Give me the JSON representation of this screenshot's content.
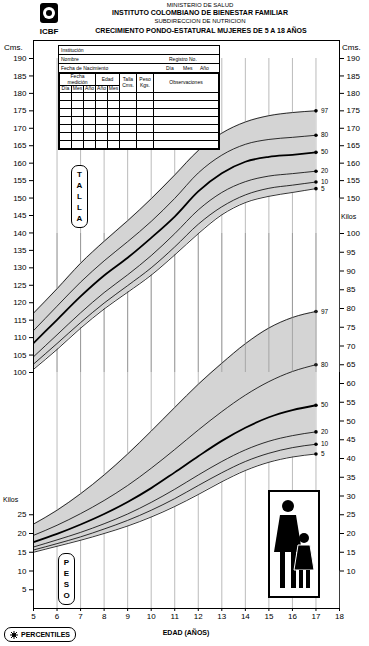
{
  "header": {
    "ministry": "MINISTERIO DE SALUD",
    "institute": "INSTITUTO COLOMBIANO DE BIENESTAR FAMILIAR",
    "division": "SUBDIRECCION DE NUTRICION",
    "title": "CRECIMIENTO PONDO-ESTATURAL MUJERES DE 5 A 18 AÑOS",
    "logo": "ICBF"
  },
  "form": {
    "institution": "Institución",
    "name": "Nombre",
    "register": "Registro No.",
    "birth_date": "Fecha de Nacimiento",
    "birth_parts": [
      "Día",
      "Mes",
      "Año"
    ],
    "columns": [
      {
        "label": "Fecha medición",
        "sub": [
          "Día",
          "Mes",
          "Año"
        ]
      },
      {
        "label": "Edad",
        "sub": [
          "Año",
          "Mes"
        ]
      },
      {
        "label": "Talla Cms."
      },
      {
        "label": "Peso Kgs."
      },
      {
        "label": "Observaciones"
      }
    ]
  },
  "footer": {
    "percentiles": "PERCENTILES"
  },
  "chart_data": [
    {
      "type": "line",
      "title": "TALLA",
      "x": [
        5,
        6,
        7,
        8,
        9,
        10,
        11,
        12,
        13,
        14,
        15,
        16,
        17
      ],
      "xlim": [
        5,
        18
      ],
      "xticks": [
        5,
        6,
        7,
        8,
        9,
        10,
        11,
        12,
        13,
        14,
        15,
        16,
        17,
        18
      ],
      "ylim": [
        100,
        190
      ],
      "yticks": [
        100,
        105,
        110,
        115,
        120,
        125,
        130,
        135,
        140,
        145,
        150,
        155,
        160,
        165,
        170,
        175,
        180,
        185,
        190
      ],
      "y2lim": [
        150,
        190
      ],
      "y2ticks": [
        150,
        155,
        160,
        165,
        170,
        175,
        180,
        185,
        190
      ],
      "ylabel": "Cms.",
      "y2label": "Cms.",
      "grid": true,
      "color": "#000000",
      "marker": "dot",
      "series": [
        {
          "name": "5",
          "line_style": "solid",
          "values": [
            100.9,
            106.6,
            112.7,
            118.2,
            123.0,
            127.9,
            133.7,
            139.8,
            145.2,
            148.7,
            150.5,
            151.6,
            152.7
          ]
        },
        {
          "name": "10",
          "line_style": "solid",
          "values": [
            102.4,
            108.3,
            114.3,
            119.9,
            124.9,
            130.0,
            136.0,
            142.5,
            147.5,
            150.9,
            152.8,
            153.7,
            154.6
          ]
        },
        {
          "name": "20",
          "line_style": "solid",
          "values": [
            104.5,
            110.8,
            117.1,
            122.9,
            128.0,
            133.5,
            139.8,
            146.6,
            151.6,
            154.7,
            156.3,
            157.0,
            157.7
          ]
        },
        {
          "name": "50",
          "line_style": "thick",
          "values": [
            108.4,
            115.1,
            121.8,
            127.8,
            132.9,
            138.6,
            144.7,
            151.9,
            157.1,
            160.4,
            161.8,
            162.4,
            163.1
          ]
        },
        {
          "name": "80",
          "line_style": "solid",
          "values": [
            112.0,
            119.0,
            125.9,
            132.0,
            137.5,
            143.3,
            149.9,
            157.2,
            162.3,
            165.4,
            166.8,
            167.4,
            168.0
          ]
        },
        {
          "name": "97",
          "line_style": "solid",
          "values": [
            117.0,
            124.0,
            131.3,
            137.6,
            143.5,
            149.8,
            156.6,
            163.6,
            168.6,
            171.8,
            173.6,
            174.5,
            175.0
          ]
        }
      ]
    },
    {
      "type": "line",
      "title": "PESO",
      "x": [
        5,
        6,
        7,
        8,
        9,
        10,
        11,
        12,
        13,
        14,
        15,
        16,
        17
      ],
      "xlim": [
        5,
        18
      ],
      "xticks": [
        5,
        6,
        7,
        8,
        9,
        10,
        11,
        12,
        13,
        14,
        15,
        16,
        17,
        18
      ],
      "xlabel": "EDAD (AÑOS)",
      "ylim": [
        0,
        100
      ],
      "yticks": [
        5,
        10,
        15,
        20,
        25
      ],
      "y2lim": [
        10,
        100
      ],
      "y2ticks": [
        10,
        15,
        20,
        25,
        30,
        35,
        40,
        45,
        50,
        55,
        60,
        65,
        70,
        75,
        80,
        85,
        90,
        95,
        100
      ],
      "ylabel": "Kilos",
      "y2label": "Kilos",
      "grid": true,
      "color": "#000000",
      "marker": "dot",
      "series": [
        {
          "name": "5",
          "line_style": "solid",
          "values": [
            15.0,
            16.6,
            18.2,
            20.0,
            22.0,
            24.4,
            27.2,
            30.4,
            33.8,
            36.8,
            39.0,
            40.4,
            41.2
          ]
        },
        {
          "name": "10",
          "line_style": "solid",
          "values": [
            15.6,
            17.3,
            19.1,
            21.2,
            23.5,
            26.2,
            29.3,
            32.8,
            36.2,
            39.2,
            41.4,
            42.9,
            43.8
          ]
        },
        {
          "name": "20",
          "line_style": "solid",
          "values": [
            16.4,
            18.3,
            20.3,
            22.6,
            25.2,
            28.3,
            31.8,
            35.6,
            39.2,
            42.3,
            44.6,
            46.1,
            47.1
          ]
        },
        {
          "name": "50",
          "line_style": "thick",
          "values": [
            17.7,
            19.9,
            22.4,
            25.2,
            28.4,
            32.1,
            36.3,
            40.6,
            44.7,
            48.2,
            51.0,
            52.9,
            54.2
          ]
        },
        {
          "name": "80",
          "line_style": "solid",
          "values": [
            19.5,
            22.2,
            25.3,
            28.8,
            32.8,
            37.4,
            42.4,
            47.6,
            52.5,
            56.9,
            60.5,
            63.2,
            65.0
          ]
        },
        {
          "name": "97",
          "line_style": "solid",
          "values": [
            22.5,
            26.2,
            30.6,
            35.6,
            41.2,
            47.3,
            53.6,
            59.8,
            65.4,
            70.6,
            74.8,
            77.6,
            79.2
          ]
        }
      ]
    }
  ]
}
